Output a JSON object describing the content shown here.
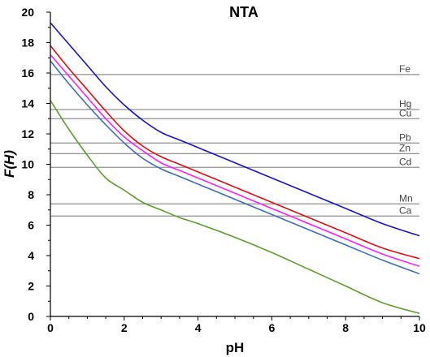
{
  "chart_data": {
    "type": "line",
    "title": "NTA",
    "xlabel": "pH",
    "ylabel": "F(H)",
    "xlim": [
      0,
      10
    ],
    "ylim": [
      0,
      20
    ],
    "xticks": [
      0,
      2,
      4,
      6,
      8,
      10
    ],
    "yticks": [
      0,
      2,
      4,
      6,
      8,
      10,
      12,
      14,
      16,
      18,
      20
    ],
    "grid": false,
    "legend": "none",
    "reference_lines": [
      {
        "label": "Fe",
        "y": 15.9,
        "color": "#909090"
      },
      {
        "label": "Hg",
        "y": 13.6,
        "color": "#909090"
      },
      {
        "label": "Cu",
        "y": 13.0,
        "color": "#909090"
      },
      {
        "label": "Pb",
        "y": 11.4,
        "color": "#909090"
      },
      {
        "label": "Zn",
        "y": 10.7,
        "color": "#909090"
      },
      {
        "label": "Cd",
        "y": 9.8,
        "color": "#909090"
      },
      {
        "label": "Mn",
        "y": 7.4,
        "color": "#909090"
      },
      {
        "label": "Ca",
        "y": 6.6,
        "color": "#909090"
      }
    ],
    "series": [
      {
        "color": "#1515c8",
        "x": [
          0,
          0.5,
          1,
          1.5,
          2,
          2.5,
          3,
          3.5,
          4,
          5,
          6,
          7,
          8,
          9,
          10
        ],
        "y": [
          19.3,
          17.9,
          16.5,
          15.1,
          13.9,
          12.9,
          12.1,
          11.6,
          11.1,
          10.1,
          9.1,
          8.1,
          7.1,
          6.1,
          5.3
        ]
      },
      {
        "color": "#e01010",
        "x": [
          0,
          0.5,
          1,
          1.5,
          2,
          2.5,
          3,
          3.5,
          4,
          5,
          6,
          7,
          8,
          9,
          10
        ],
        "y": [
          17.8,
          16.3,
          14.9,
          13.5,
          12.2,
          11.2,
          10.5,
          10.0,
          9.5,
          8.5,
          7.5,
          6.5,
          5.5,
          4.5,
          3.8
        ]
      },
      {
        "color": "#ff20ff",
        "x": [
          0,
          0.5,
          1,
          1.5,
          2,
          2.5,
          3,
          3.5,
          4,
          5,
          6,
          7,
          8,
          9,
          10
        ],
        "y": [
          17.2,
          15.8,
          14.4,
          13.0,
          11.8,
          10.9,
          10.1,
          9.6,
          9.1,
          8.1,
          7.1,
          6.1,
          5.1,
          4.1,
          3.3
        ]
      },
      {
        "color": "#3a6fb8",
        "x": [
          0,
          0.5,
          1,
          1.5,
          2,
          2.5,
          3,
          3.5,
          4,
          5,
          6,
          7,
          8,
          9,
          10
        ],
        "y": [
          16.8,
          15.3,
          13.9,
          12.6,
          11.4,
          10.4,
          9.7,
          9.2,
          8.7,
          7.7,
          6.7,
          5.7,
          4.7,
          3.7,
          2.8
        ]
      },
      {
        "color": "#5aa02c",
        "x": [
          0,
          0.5,
          1,
          1.5,
          2,
          2.5,
          3,
          3.5,
          4,
          5,
          6,
          7,
          8,
          9,
          10
        ],
        "y": [
          14.2,
          12.3,
          10.6,
          9.1,
          8.3,
          7.5,
          7.0,
          6.5,
          6.1,
          5.2,
          4.2,
          3.1,
          2.0,
          0.9,
          0.2
        ]
      }
    ]
  }
}
